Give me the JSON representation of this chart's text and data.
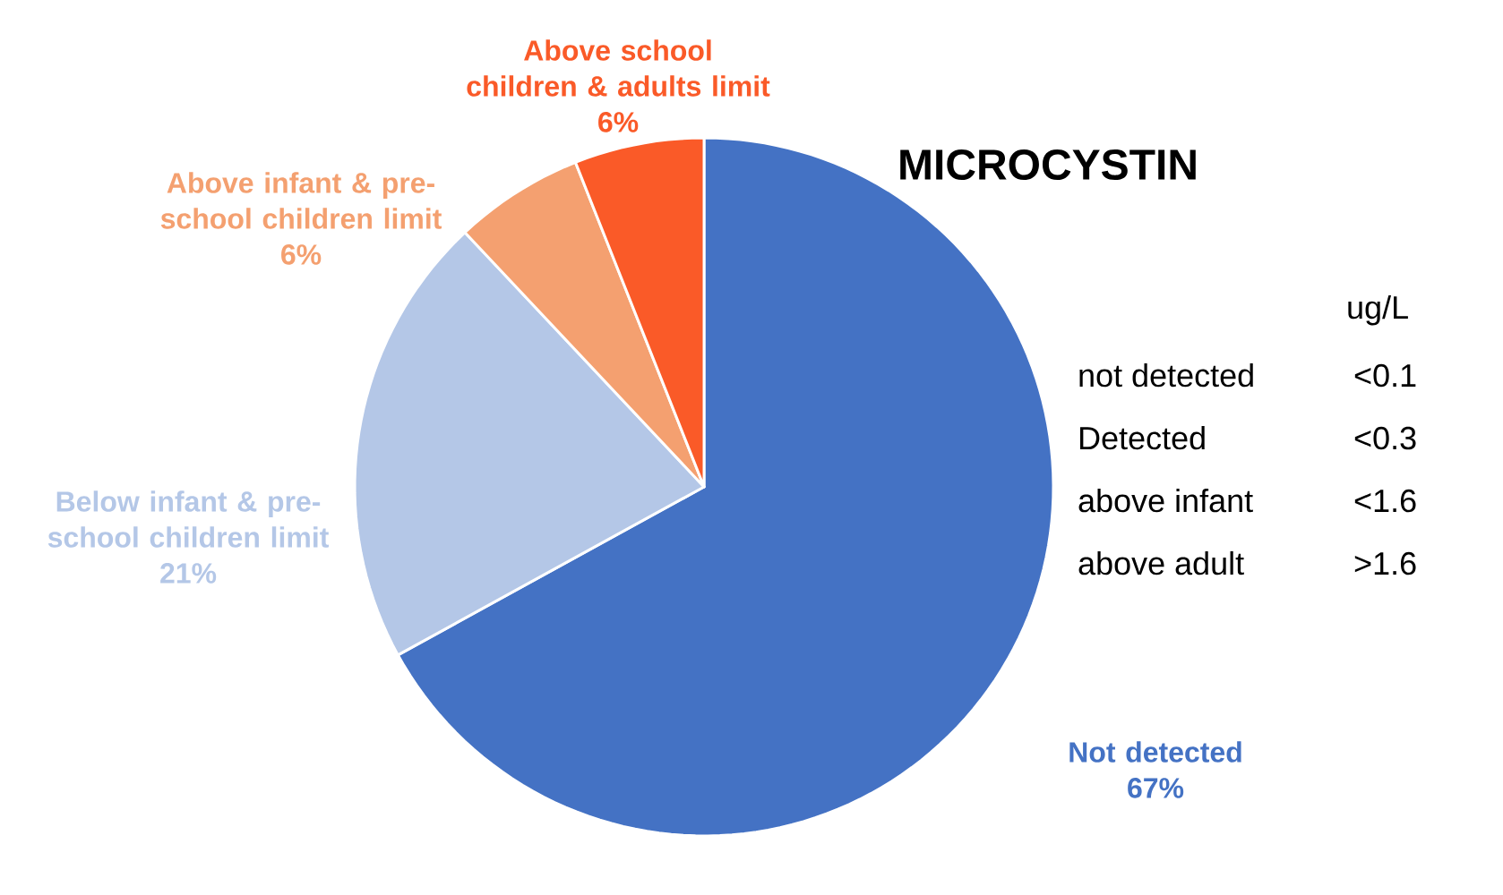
{
  "chart_data": {
    "type": "pie",
    "title": "MICROCYSTIN",
    "categories": [
      "Not detected",
      "Below infant & pre-school children limit",
      "Above infant & pre-school children limit",
      "Above school children & adults limit"
    ],
    "values": [
      67,
      21,
      6,
      6
    ],
    "value_labels": [
      "67%",
      "21%",
      "6%",
      "6%"
    ],
    "colors": [
      "#4472c4",
      "#b4c7e7",
      "#f4a070",
      "#fa5a28"
    ],
    "annotations": [
      "ug/L",
      "not detected",
      "<0.1",
      "Detected",
      "<0.3",
      "above infant",
      "<1.6",
      "above adult",
      ">1.6"
    ]
  }
}
